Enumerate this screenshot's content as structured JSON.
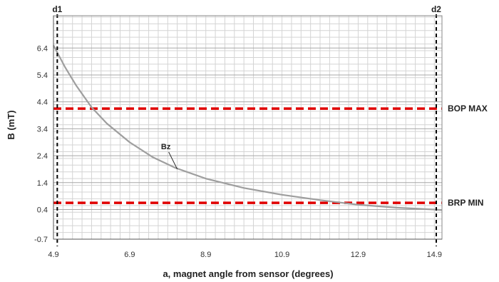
{
  "chart_data": {
    "type": "line",
    "title": "",
    "xlabel": "a, magnet angle from sensor (degrees)",
    "ylabel": "B (mT)",
    "xlim": [
      4.9,
      15.1
    ],
    "ylim": [
      -0.7,
      7.6
    ],
    "x_ticks": [
      "4.9",
      "6.9",
      "8.9",
      "10.9",
      "12.9",
      "14.9"
    ],
    "x_tick_values": [
      4.9,
      6.9,
      8.9,
      10.9,
      12.9,
      14.9
    ],
    "y_ticks": [
      "-0.7",
      "0.4",
      "1.4",
      "2.4",
      "3.4",
      "4.4",
      "5.4",
      "6.4"
    ],
    "y_tick_values": [
      -0.7,
      0.4,
      1.4,
      2.4,
      3.4,
      4.4,
      5.4,
      6.4
    ],
    "grid": true,
    "series": [
      {
        "name": "Bz",
        "color": "#9e9e9e",
        "x": [
          4.9,
          5.2,
          5.5,
          5.9,
          6.3,
          6.9,
          7.5,
          8.1,
          8.9,
          9.9,
          10.9,
          11.9,
          12.9,
          13.9,
          14.9,
          15.1
        ],
        "y": [
          6.5,
          5.7,
          5.0,
          4.2,
          3.6,
          2.9,
          2.35,
          1.95,
          1.55,
          1.2,
          0.95,
          0.75,
          0.58,
          0.47,
          0.4,
          0.38
        ]
      }
    ],
    "thresholds": [
      {
        "label": "BOP MAX",
        "value": 4.15,
        "color": "#e00000"
      },
      {
        "label": "BRP MIN",
        "value": 0.65,
        "color": "#e00000"
      }
    ],
    "vertical_markers": [
      {
        "label": "d1",
        "value": 5.0
      },
      {
        "label": "d2",
        "value": 14.95
      }
    ],
    "annotations": [
      {
        "text": "Bz",
        "x": 8.15,
        "y": 1.9
      }
    ]
  }
}
